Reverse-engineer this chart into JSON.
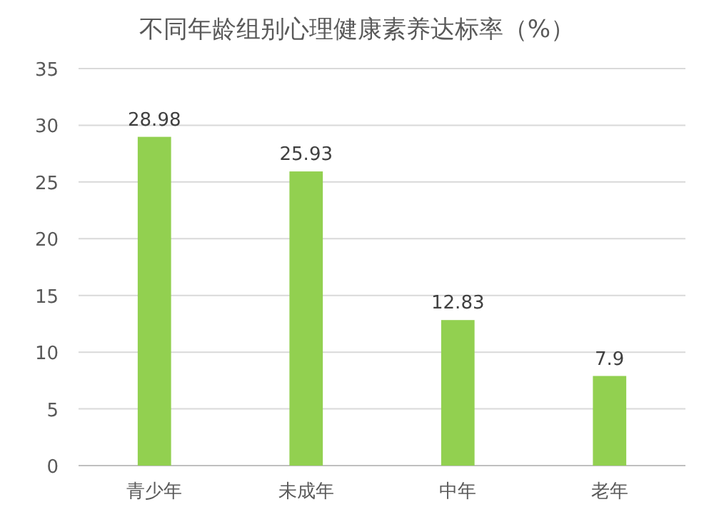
{
  "chart_data": {
    "type": "bar",
    "title": "不同年龄组别心理健康素养达标率（%）",
    "categories": [
      "青少年",
      "未成年",
      "中年",
      "老年"
    ],
    "values": [
      28.98,
      25.93,
      12.83,
      7.9
    ],
    "color": "#92d050",
    "ylim": [
      0,
      35
    ],
    "yticks": [
      0,
      5,
      10,
      15,
      20,
      25,
      30,
      35
    ],
    "grid": "y",
    "data_labels": true
  }
}
